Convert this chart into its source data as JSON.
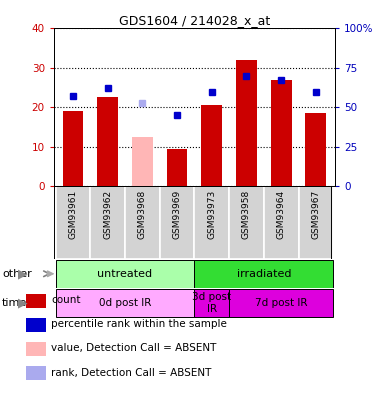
{
  "title": "GDS1604 / 214028_x_at",
  "samples": [
    "GSM93961",
    "GSM93962",
    "GSM93968",
    "GSM93969",
    "GSM93973",
    "GSM93958",
    "GSM93964",
    "GSM93967"
  ],
  "bar_values": [
    19,
    22.5,
    12.5,
    9.5,
    20.5,
    32,
    27,
    18.5
  ],
  "bar_colors": [
    "#cc0000",
    "#cc0000",
    "#ffb6b6",
    "#cc0000",
    "#cc0000",
    "#cc0000",
    "#cc0000",
    "#cc0000"
  ],
  "rank_values": [
    57,
    62,
    53,
    45,
    60,
    70,
    67,
    60
  ],
  "rank_colors": [
    "#0000cc",
    "#0000cc",
    "#aaaaee",
    "#0000cc",
    "#0000cc",
    "#0000cc",
    "#0000cc",
    "#0000cc"
  ],
  "ylim_left": [
    0,
    40
  ],
  "ylim_right": [
    0,
    100
  ],
  "yticks_left": [
    0,
    10,
    20,
    30,
    40
  ],
  "ytick_labels_right": [
    "0",
    "25",
    "50",
    "75",
    "100%"
  ],
  "other_groups": [
    {
      "label": "untreated",
      "start": 0,
      "end": 4,
      "color": "#aaffaa"
    },
    {
      "label": "irradiated",
      "start": 4,
      "end": 8,
      "color": "#33dd33"
    }
  ],
  "time_groups": [
    {
      "label": "0d post IR",
      "start": 0,
      "end": 4,
      "color": "#ffaaff"
    },
    {
      "label": "3d post\nIR",
      "start": 4,
      "end": 5,
      "color": "#dd00dd"
    },
    {
      "label": "7d post IR",
      "start": 5,
      "end": 8,
      "color": "#dd00dd"
    }
  ],
  "legend_items": [
    {
      "color": "#cc0000",
      "label": "count"
    },
    {
      "color": "#0000cc",
      "label": "percentile rank within the sample"
    },
    {
      "color": "#ffb6b6",
      "label": "value, Detection Call = ABSENT"
    },
    {
      "color": "#aaaaee",
      "label": "rank, Detection Call = ABSENT"
    }
  ],
  "left_axis_color": "#cc0000",
  "right_axis_color": "#0000bb",
  "other_row_label": "other",
  "time_row_label": "time",
  "bg_color": "#f0f0f0"
}
